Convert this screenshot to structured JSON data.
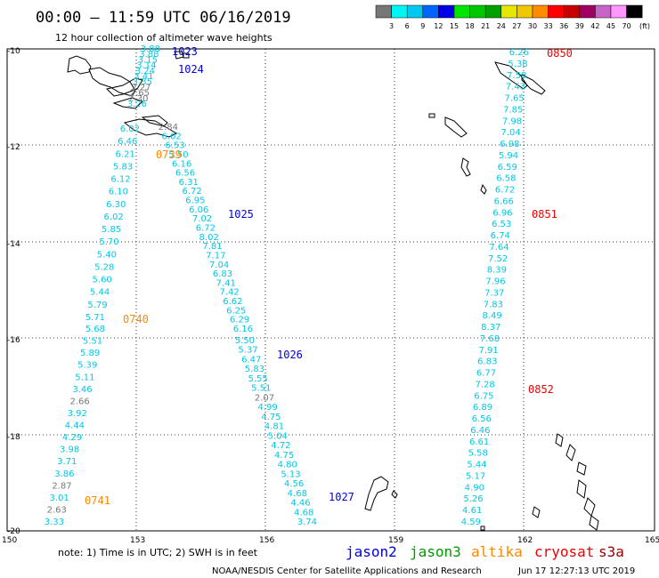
{
  "header": {
    "title": "00:00 — 11:59 UTC 06/16/2019",
    "subtitle": "12 hour collection of altimeter wave heights"
  },
  "legend": {
    "labels": [
      "3",
      "6",
      "9",
      "12",
      "15",
      "18",
      "21",
      "24",
      "27",
      "30",
      "33",
      "36",
      "39",
      "42",
      "45",
      "70"
    ],
    "unit": "(ft)",
    "colors": [
      "#777777",
      "#00f5f5",
      "#00c8f0",
      "#0064ff",
      "#0000e6",
      "#00e600",
      "#00c800",
      "#00a000",
      "#e6e600",
      "#f0c800",
      "#ff8c00",
      "#ff0000",
      "#c80000",
      "#a00064",
      "#c864c8",
      "#ff96ff",
      "#000000"
    ]
  },
  "axes": {
    "lat_labels": [
      "-10",
      "-12",
      "-14",
      "-16",
      "-18",
      "-20"
    ],
    "lon_labels": [
      "150",
      "153",
      "156",
      "159",
      "162",
      "165"
    ]
  },
  "note": "note: 1) Time is in UTC; 2) SWH is in feet",
  "satellites": [
    {
      "name": "jason2",
      "color": "#0000dd"
    },
    {
      "name": "jason3",
      "color": "#009900"
    },
    {
      "name": "altika",
      "color": "#ff8800"
    },
    {
      "name": "cryosat",
      "color": "#ee0000"
    },
    {
      "name": "s3a",
      "color": "#990000"
    }
  ],
  "footer": {
    "credit": "NOAA/NESDIS Center for Satellite Applications and Research",
    "timestamp": "Jun 17 12:27:13 UTC 2019"
  },
  "tracks": [
    {
      "id": "altika-1",
      "color": "#ff8800",
      "time": "0739",
      "values": [
        "6.02",
        "6.46",
        "6.21",
        "5.83",
        "6.12",
        "6.10",
        "6.30",
        "6.02",
        "5.85",
        "5.70",
        "5.40",
        "5.28",
        "5.60",
        "5.44",
        "5.79",
        "5.71"
      ]
    },
    {
      "id": "altika-2",
      "color": "#ff8800",
      "time": "0740",
      "values": [
        "5.68",
        "5.51",
        "5.89",
        "5.39",
        "5.11",
        "3.46",
        "2.66",
        "3.92",
        "4.44",
        "4.29",
        "3.98",
        "3.71",
        "3.86",
        "2.87",
        "3.01",
        "2.63",
        "3.33"
      ]
    },
    {
      "id": "altika-3",
      "color": "#ff8800",
      "time": "0741",
      "values": []
    },
    {
      "id": "jason2-1",
      "color": "#0000dd",
      "time": "1023",
      "values": [
        "3.88",
        "3.88",
        "3.15",
        "3.14",
        "3.24",
        "3.41",
        "3.35",
        "2.27",
        "2.65",
        "2.30",
        "3.26"
      ]
    },
    {
      "id": "jason2-2",
      "color": "#0000dd",
      "time": "1024",
      "values": []
    },
    {
      "id": "jason2-3",
      "color": "#0000dd",
      "time": "1025",
      "values": [
        "2.84",
        "6.02",
        "6.53",
        "5.50",
        "6.16",
        "6.56",
        "6.31",
        "6.72",
        "6.95",
        "6.06",
        "7.02",
        "6.72",
        "8.02",
        "7.81",
        "7.17",
        "7.04",
        "6.83",
        "7.41",
        "7.42",
        "6.62",
        "6.25",
        "6.29",
        "6.16"
      ]
    },
    {
      "id": "jason2-4",
      "color": "#0000dd",
      "time": "1026",
      "values": [
        "5.50",
        "5.37",
        "6.47",
        "5.83",
        "5.55",
        "5.51",
        "2.07",
        "4.99",
        "4.75",
        "4.81",
        "5.04",
        "4.72",
        "4.75",
        "4.80",
        "5.13",
        "4.56",
        "4.68",
        "4.46",
        "4.68",
        "3.74"
      ]
    },
    {
      "id": "jason2-5",
      "color": "#0000dd",
      "time": "1027",
      "values": []
    },
    {
      "id": "cryosat-1",
      "color": "#ee0000",
      "time": "0850",
      "values": [
        "6.26",
        "5.38",
        "7.58",
        "7.43",
        "7.65",
        "7.85",
        "7.98",
        "7.04",
        "6.98",
        "5.94",
        "6.59",
        "6.58",
        "6.72",
        "6.66",
        "6.96",
        "6.53",
        "6.74",
        "7.64",
        "7.52",
        "8.39",
        "7.96",
        "7.37",
        "7.83",
        "8.49",
        "8.37",
        "7.68",
        "7.91",
        "6.83",
        "6.77",
        "7.28",
        "6.75",
        "6.89",
        "6.56",
        "6.46",
        "6.61",
        "5.58",
        "5.44",
        "5.17",
        "4.90",
        "5.26",
        "4.61",
        "4.59"
      ]
    },
    {
      "id": "cryosat-2",
      "color": "#ee0000",
      "time": "0851",
      "values": []
    },
    {
      "id": "cryosat-3",
      "color": "#ee0000",
      "time": "0852",
      "values": []
    }
  ]
}
